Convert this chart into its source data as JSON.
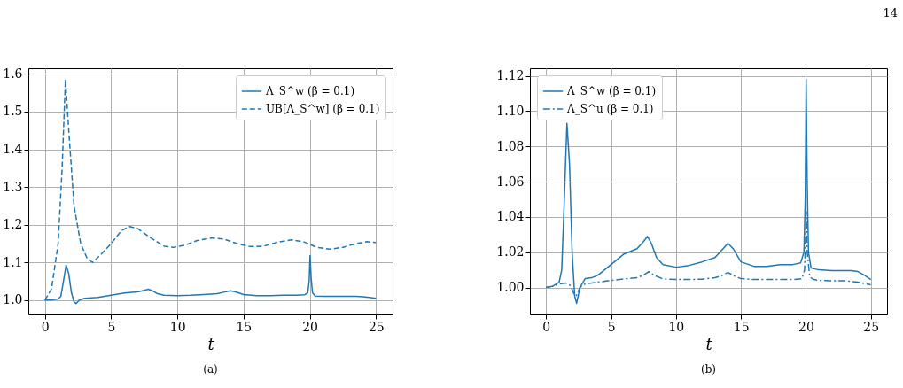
{
  "chart_data": [
    {
      "type": "line",
      "title": "(a)",
      "xlabel": "t",
      "legend": "top right",
      "grid": true,
      "xlim": [
        -1.25,
        26.25
      ],
      "ylim": [
        0.962,
        1.615
      ],
      "xticks": [
        0,
        5,
        10,
        15,
        20,
        25
      ],
      "yticks": [
        {
          "value": 1.0,
          "label": "1.0"
        },
        {
          "value": 1.1,
          "label": "1.1"
        },
        {
          "value": 1.2,
          "label": "1.2"
        },
        {
          "value": 1.3,
          "label": "1.3"
        },
        {
          "value": 1.4,
          "label": "1.4"
        },
        {
          "value": 1.5,
          "label": "1.5"
        },
        {
          "value": 1.6,
          "label": "1.6"
        }
      ],
      "series": [
        {
          "name": "Λ_S^w (β = 0.1)",
          "color": "#1f77b4",
          "line_style": "solid",
          "x": [
            0,
            0.5,
            1,
            1.2,
            1.4,
            1.6,
            1.8,
            2.0,
            2.2,
            2.35,
            2.6,
            3,
            3.5,
            4,
            4.5,
            5,
            6,
            7,
            7.5,
            7.8,
            8.1,
            8.5,
            9,
            10,
            11,
            12,
            13,
            13.5,
            14,
            14.4,
            15,
            16,
            17,
            18,
            19,
            19.6,
            19.85,
            19.95,
            20.02,
            20.1,
            20.2,
            20.4,
            21,
            22,
            23,
            23.5,
            24,
            24.5,
            25
          ],
          "values": [
            1.0,
            1.001,
            1.003,
            1.01,
            1.05,
            1.093,
            1.07,
            1.02,
            0.995,
            0.991,
            1.0,
            1.005,
            1.006,
            1.007,
            1.01,
            1.013,
            1.019,
            1.022,
            1.026,
            1.029,
            1.025,
            1.017,
            1.013,
            1.012,
            1.013,
            1.015,
            1.017,
            1.021,
            1.025,
            1.022,
            1.015,
            1.012,
            1.012,
            1.013,
            1.013,
            1.014,
            1.02,
            1.05,
            1.118,
            1.06,
            1.02,
            1.011,
            1.01,
            1.01,
            1.01,
            1.01,
            1.009,
            1.007,
            1.005
          ]
        },
        {
          "name": "UB[Λ_S^w] (β = 0.1)",
          "color": "#1f77b4",
          "line_style": "dashed",
          "x": [
            0,
            0.5,
            1,
            1.3,
            1.55,
            1.8,
            2.2,
            2.7,
            3.2,
            3.6,
            4.2,
            5,
            5.8,
            6.4,
            7,
            8,
            9,
            9.7,
            10.5,
            11.5,
            12.6,
            13.5,
            14.5,
            15.5,
            16.5,
            17.5,
            18.6,
            19.5,
            20,
            20.5,
            21.5,
            22.5,
            23.5,
            24.3,
            25
          ],
          "values": [
            1.0,
            1.03,
            1.15,
            1.35,
            1.585,
            1.45,
            1.25,
            1.15,
            1.11,
            1.1,
            1.12,
            1.15,
            1.185,
            1.195,
            1.19,
            1.165,
            1.143,
            1.14,
            1.145,
            1.158,
            1.165,
            1.162,
            1.15,
            1.142,
            1.143,
            1.153,
            1.16,
            1.155,
            1.148,
            1.14,
            1.135,
            1.14,
            1.15,
            1.155,
            1.153
          ]
        }
      ]
    },
    {
      "type": "line",
      "title": "(b)",
      "xlabel": "t",
      "legend": "top left",
      "grid": true,
      "annotations": [
        "14"
      ],
      "xlim": [
        -1.25,
        26.25
      ],
      "ylim": [
        0.9847,
        1.1243
      ],
      "xticks": [
        0,
        5,
        10,
        15,
        20,
        25
      ],
      "yticks": [
        {
          "value": 1.0,
          "label": "1.00"
        },
        {
          "value": 1.02,
          "label": "1.02"
        },
        {
          "value": 1.04,
          "label": "1.04"
        },
        {
          "value": 1.06,
          "label": "1.06"
        },
        {
          "value": 1.08,
          "label": "1.08"
        },
        {
          "value": 1.1,
          "label": "1.10"
        },
        {
          "value": 1.12,
          "label": "1.12"
        }
      ],
      "series": [
        {
          "name": "Λ_S^w (β = 0.1)",
          "color": "#1f77b4",
          "line_style": "solid",
          "x": [
            0,
            0.5,
            1,
            1.2,
            1.4,
            1.6,
            1.8,
            2.0,
            2.2,
            2.35,
            2.6,
            3,
            3.5,
            4,
            4.5,
            5,
            6,
            7,
            7.5,
            7.8,
            8.1,
            8.5,
            9,
            10,
            11,
            12,
            13,
            13.5,
            14,
            14.4,
            15,
            16,
            17,
            18,
            19,
            19.6,
            19.85,
            19.95,
            20.02,
            20.1,
            20.2,
            20.4,
            21,
            22,
            23,
            23.5,
            24,
            24.5,
            25
          ],
          "values": [
            1.0,
            1.0007,
            1.003,
            1.01,
            1.05,
            1.093,
            1.07,
            1.02,
            0.995,
            0.991,
            1.0,
            1.005,
            1.0055,
            1.007,
            1.01,
            1.013,
            1.019,
            1.022,
            1.026,
            1.029,
            1.025,
            1.017,
            1.013,
            1.0115,
            1.0125,
            1.0145,
            1.017,
            1.021,
            1.025,
            1.022,
            1.0145,
            1.012,
            1.012,
            1.013,
            1.013,
            1.014,
            1.02,
            1.05,
            1.118,
            1.06,
            1.02,
            1.011,
            1.01,
            1.0095,
            1.0095,
            1.0095,
            1.009,
            1.007,
            1.0045
          ]
        },
        {
          "name": "Λ_S^u (β = 0.1)",
          "color": "#1f77b4",
          "line_style": "dashdot",
          "x": [
            0,
            0.5,
            1,
            1.5,
            1.9,
            2.1,
            2.3,
            2.6,
            3,
            4,
            5,
            6,
            7,
            7.5,
            7.9,
            8.3,
            9,
            10,
            11,
            12,
            13,
            13.6,
            14,
            14.5,
            15,
            16,
            17,
            18,
            19,
            19.7,
            19.9,
            20.03,
            20.1,
            20.3,
            20.6,
            21,
            22,
            23,
            24,
            25
          ],
          "values": [
            1.0,
            1.0007,
            1.002,
            1.0025,
            1.001,
            0.997,
            0.995,
            1.0,
            1.002,
            1.003,
            1.004,
            1.0048,
            1.0055,
            1.007,
            1.009,
            1.007,
            1.0048,
            1.0045,
            1.0045,
            1.0047,
            1.0055,
            1.007,
            1.0085,
            1.0065,
            1.005,
            1.0045,
            1.0045,
            1.0045,
            1.0045,
            1.005,
            1.01,
            1.043,
            1.02,
            1.006,
            1.0045,
            1.004,
            1.0038,
            1.0038,
            1.003,
            1.0015
          ]
        }
      ]
    }
  ]
}
